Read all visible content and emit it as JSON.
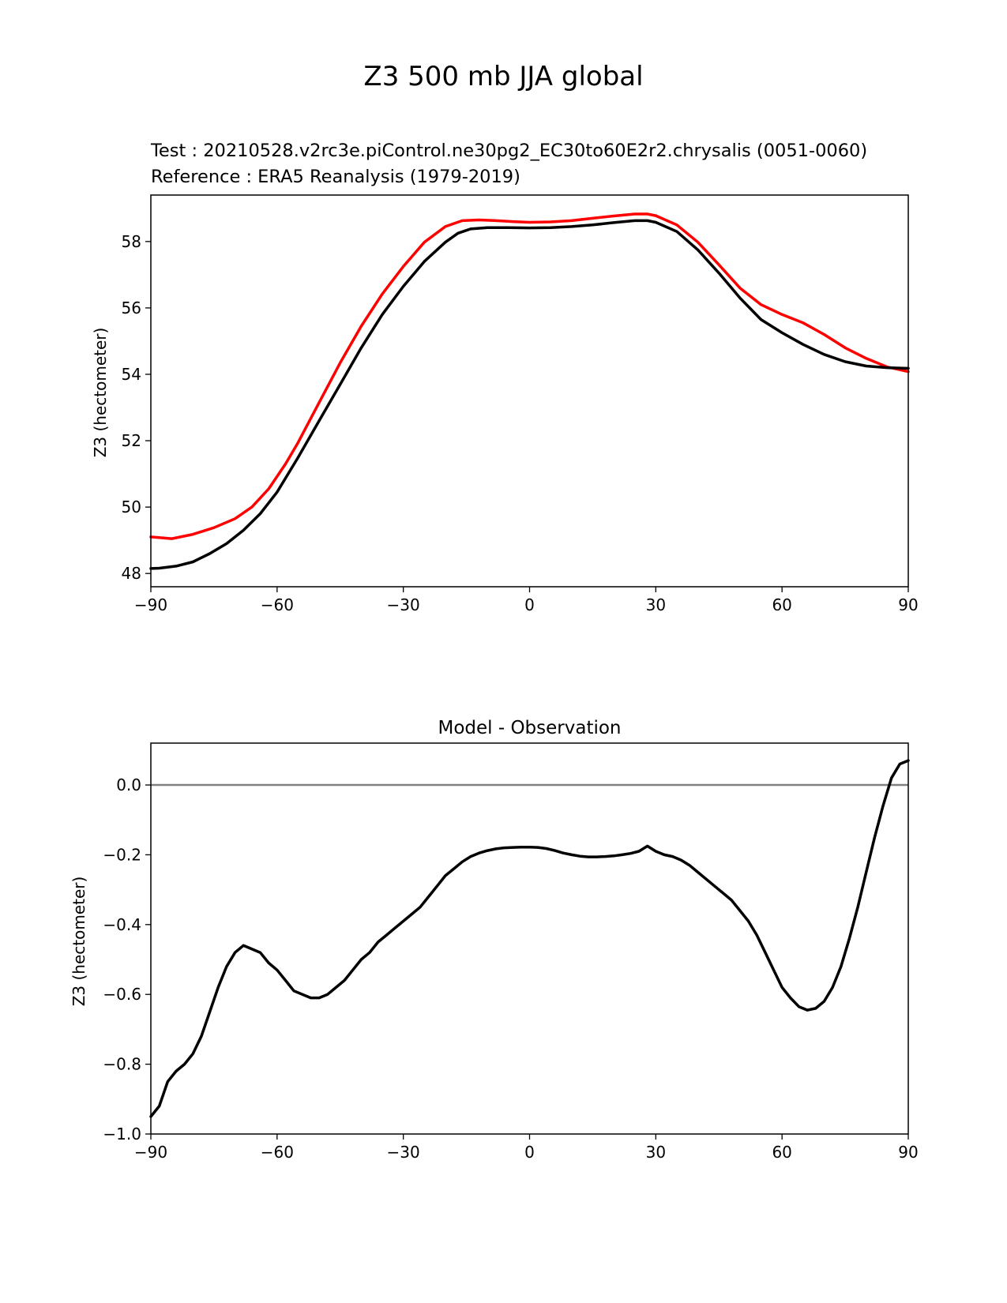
{
  "suptitle": "Z3 500 mb JJA global",
  "colors": {
    "test": "#000000",
    "reference": "#ff0000",
    "zero_line": "#808080",
    "axis": "#000000"
  },
  "chart_data": [
    {
      "type": "line",
      "test_label": "Test : 20210528.v2rc3e.piControl.ne30pg2_EC30to60E2r2.chrysalis (0051-0060)",
      "reference_label": "Reference : ERA5 Reanalysis (1979-2019)",
      "xlabel": "",
      "ylabel": "Z3 (hectometer)",
      "xlim": [
        -90,
        90
      ],
      "ylim": [
        47.6,
        59.4
      ],
      "xticks": [
        -90,
        -60,
        -30,
        0,
        30,
        60,
        90
      ],
      "xtick_labels": [
        "−90",
        "−60",
        "−30",
        "0",
        "30",
        "60",
        "90"
      ],
      "yticks": [
        48,
        50,
        52,
        54,
        56,
        58
      ],
      "ytick_labels": [
        "48",
        "50",
        "52",
        "54",
        "56",
        "58"
      ],
      "series": [
        {
          "name": "test",
          "x": [
            -90,
            -88,
            -84,
            -80,
            -76,
            -72,
            -68,
            -64,
            -60,
            -55,
            -50,
            -45,
            -40,
            -35,
            -30,
            -25,
            -20,
            -17,
            -14,
            -10,
            -5,
            0,
            5,
            10,
            15,
            20,
            25,
            28,
            30,
            35,
            40,
            45,
            50,
            55,
            60,
            65,
            70,
            75,
            80,
            85,
            90
          ],
          "values": [
            48.15,
            48.16,
            48.22,
            48.35,
            48.6,
            48.9,
            49.3,
            49.8,
            50.45,
            51.5,
            52.6,
            53.7,
            54.8,
            55.8,
            56.65,
            57.4,
            57.98,
            58.25,
            58.38,
            58.42,
            58.42,
            58.41,
            58.42,
            58.45,
            58.5,
            58.57,
            58.63,
            58.63,
            58.58,
            58.3,
            57.75,
            57.05,
            56.3,
            55.65,
            55.25,
            54.9,
            54.6,
            54.38,
            54.25,
            54.2,
            54.18
          ]
        },
        {
          "name": "reference",
          "x": [
            -90,
            -85,
            -80,
            -75,
            -70,
            -66,
            -62,
            -58,
            -55,
            -50,
            -45,
            -40,
            -35,
            -30,
            -25,
            -20,
            -16,
            -12,
            -8,
            -4,
            0,
            5,
            10,
            15,
            20,
            25,
            28,
            30,
            35,
            40,
            45,
            50,
            55,
            60,
            65,
            70,
            75,
            80,
            85,
            90
          ],
          "values": [
            49.1,
            49.05,
            49.18,
            49.38,
            49.65,
            50.0,
            50.55,
            51.3,
            51.95,
            53.15,
            54.35,
            55.45,
            56.42,
            57.25,
            57.98,
            58.45,
            58.63,
            58.65,
            58.63,
            58.6,
            58.58,
            58.59,
            58.63,
            58.7,
            58.77,
            58.83,
            58.83,
            58.78,
            58.5,
            57.98,
            57.3,
            56.6,
            56.1,
            55.8,
            55.55,
            55.2,
            54.8,
            54.48,
            54.22,
            54.08
          ]
        }
      ]
    },
    {
      "type": "line",
      "title": "Model - Observation",
      "xlabel": "",
      "ylabel": "Z3 (hectometer)",
      "xlim": [
        -90,
        90
      ],
      "ylim": [
        -1.0,
        0.12
      ],
      "xticks": [
        -90,
        -60,
        -30,
        0,
        30,
        60,
        90
      ],
      "xtick_labels": [
        "−90",
        "−60",
        "−30",
        "0",
        "30",
        "60",
        "90"
      ],
      "yticks": [
        -1.0,
        -0.8,
        -0.6,
        -0.4,
        -0.2,
        0.0
      ],
      "ytick_labels": [
        "−1.0",
        "−0.8",
        "−0.6",
        "−0.4",
        "−0.2",
        "0.0"
      ],
      "zero_line": 0.0,
      "series": [
        {
          "name": "difference",
          "x": [
            -90,
            -88,
            -86,
            -84,
            -82,
            -80,
            -78,
            -76,
            -74,
            -72,
            -70,
            -68,
            -66,
            -64,
            -62,
            -60,
            -58,
            -56,
            -54,
            -52,
            -50,
            -48,
            -46,
            -44,
            -42,
            -40,
            -38,
            -36,
            -34,
            -32,
            -30,
            -28,
            -26,
            -24,
            -22,
            -20,
            -18,
            -16,
            -14,
            -12,
            -10,
            -8,
            -6,
            -4,
            -2,
            0,
            2,
            4,
            6,
            8,
            10,
            12,
            14,
            16,
            18,
            20,
            22,
            24,
            26,
            28,
            30,
            32,
            34,
            36,
            38,
            40,
            42,
            44,
            46,
            48,
            50,
            52,
            54,
            56,
            58,
            60,
            62,
            64,
            66,
            68,
            70,
            72,
            74,
            76,
            78,
            80,
            82,
            84,
            86,
            88,
            90
          ],
          "values": [
            -0.95,
            -0.92,
            -0.85,
            -0.82,
            -0.8,
            -0.77,
            -0.72,
            -0.65,
            -0.58,
            -0.52,
            -0.48,
            -0.46,
            -0.47,
            -0.48,
            -0.51,
            -0.53,
            -0.56,
            -0.59,
            -0.6,
            -0.61,
            -0.61,
            -0.6,
            -0.58,
            -0.56,
            -0.53,
            -0.5,
            -0.48,
            -0.45,
            -0.43,
            -0.41,
            -0.39,
            -0.37,
            -0.35,
            -0.32,
            -0.29,
            -0.26,
            -0.24,
            -0.22,
            -0.205,
            -0.195,
            -0.188,
            -0.183,
            -0.18,
            -0.179,
            -0.178,
            -0.178,
            -0.179,
            -0.182,
            -0.188,
            -0.195,
            -0.2,
            -0.204,
            -0.206,
            -0.206,
            -0.205,
            -0.203,
            -0.2,
            -0.196,
            -0.19,
            -0.175,
            -0.19,
            -0.2,
            -0.205,
            -0.215,
            -0.23,
            -0.25,
            -0.27,
            -0.29,
            -0.31,
            -0.33,
            -0.36,
            -0.39,
            -0.43,
            -0.48,
            -0.53,
            -0.58,
            -0.61,
            -0.635,
            -0.645,
            -0.64,
            -0.62,
            -0.58,
            -0.52,
            -0.44,
            -0.35,
            -0.25,
            -0.15,
            -0.06,
            0.02,
            0.06,
            0.07
          ]
        }
      ]
    }
  ]
}
